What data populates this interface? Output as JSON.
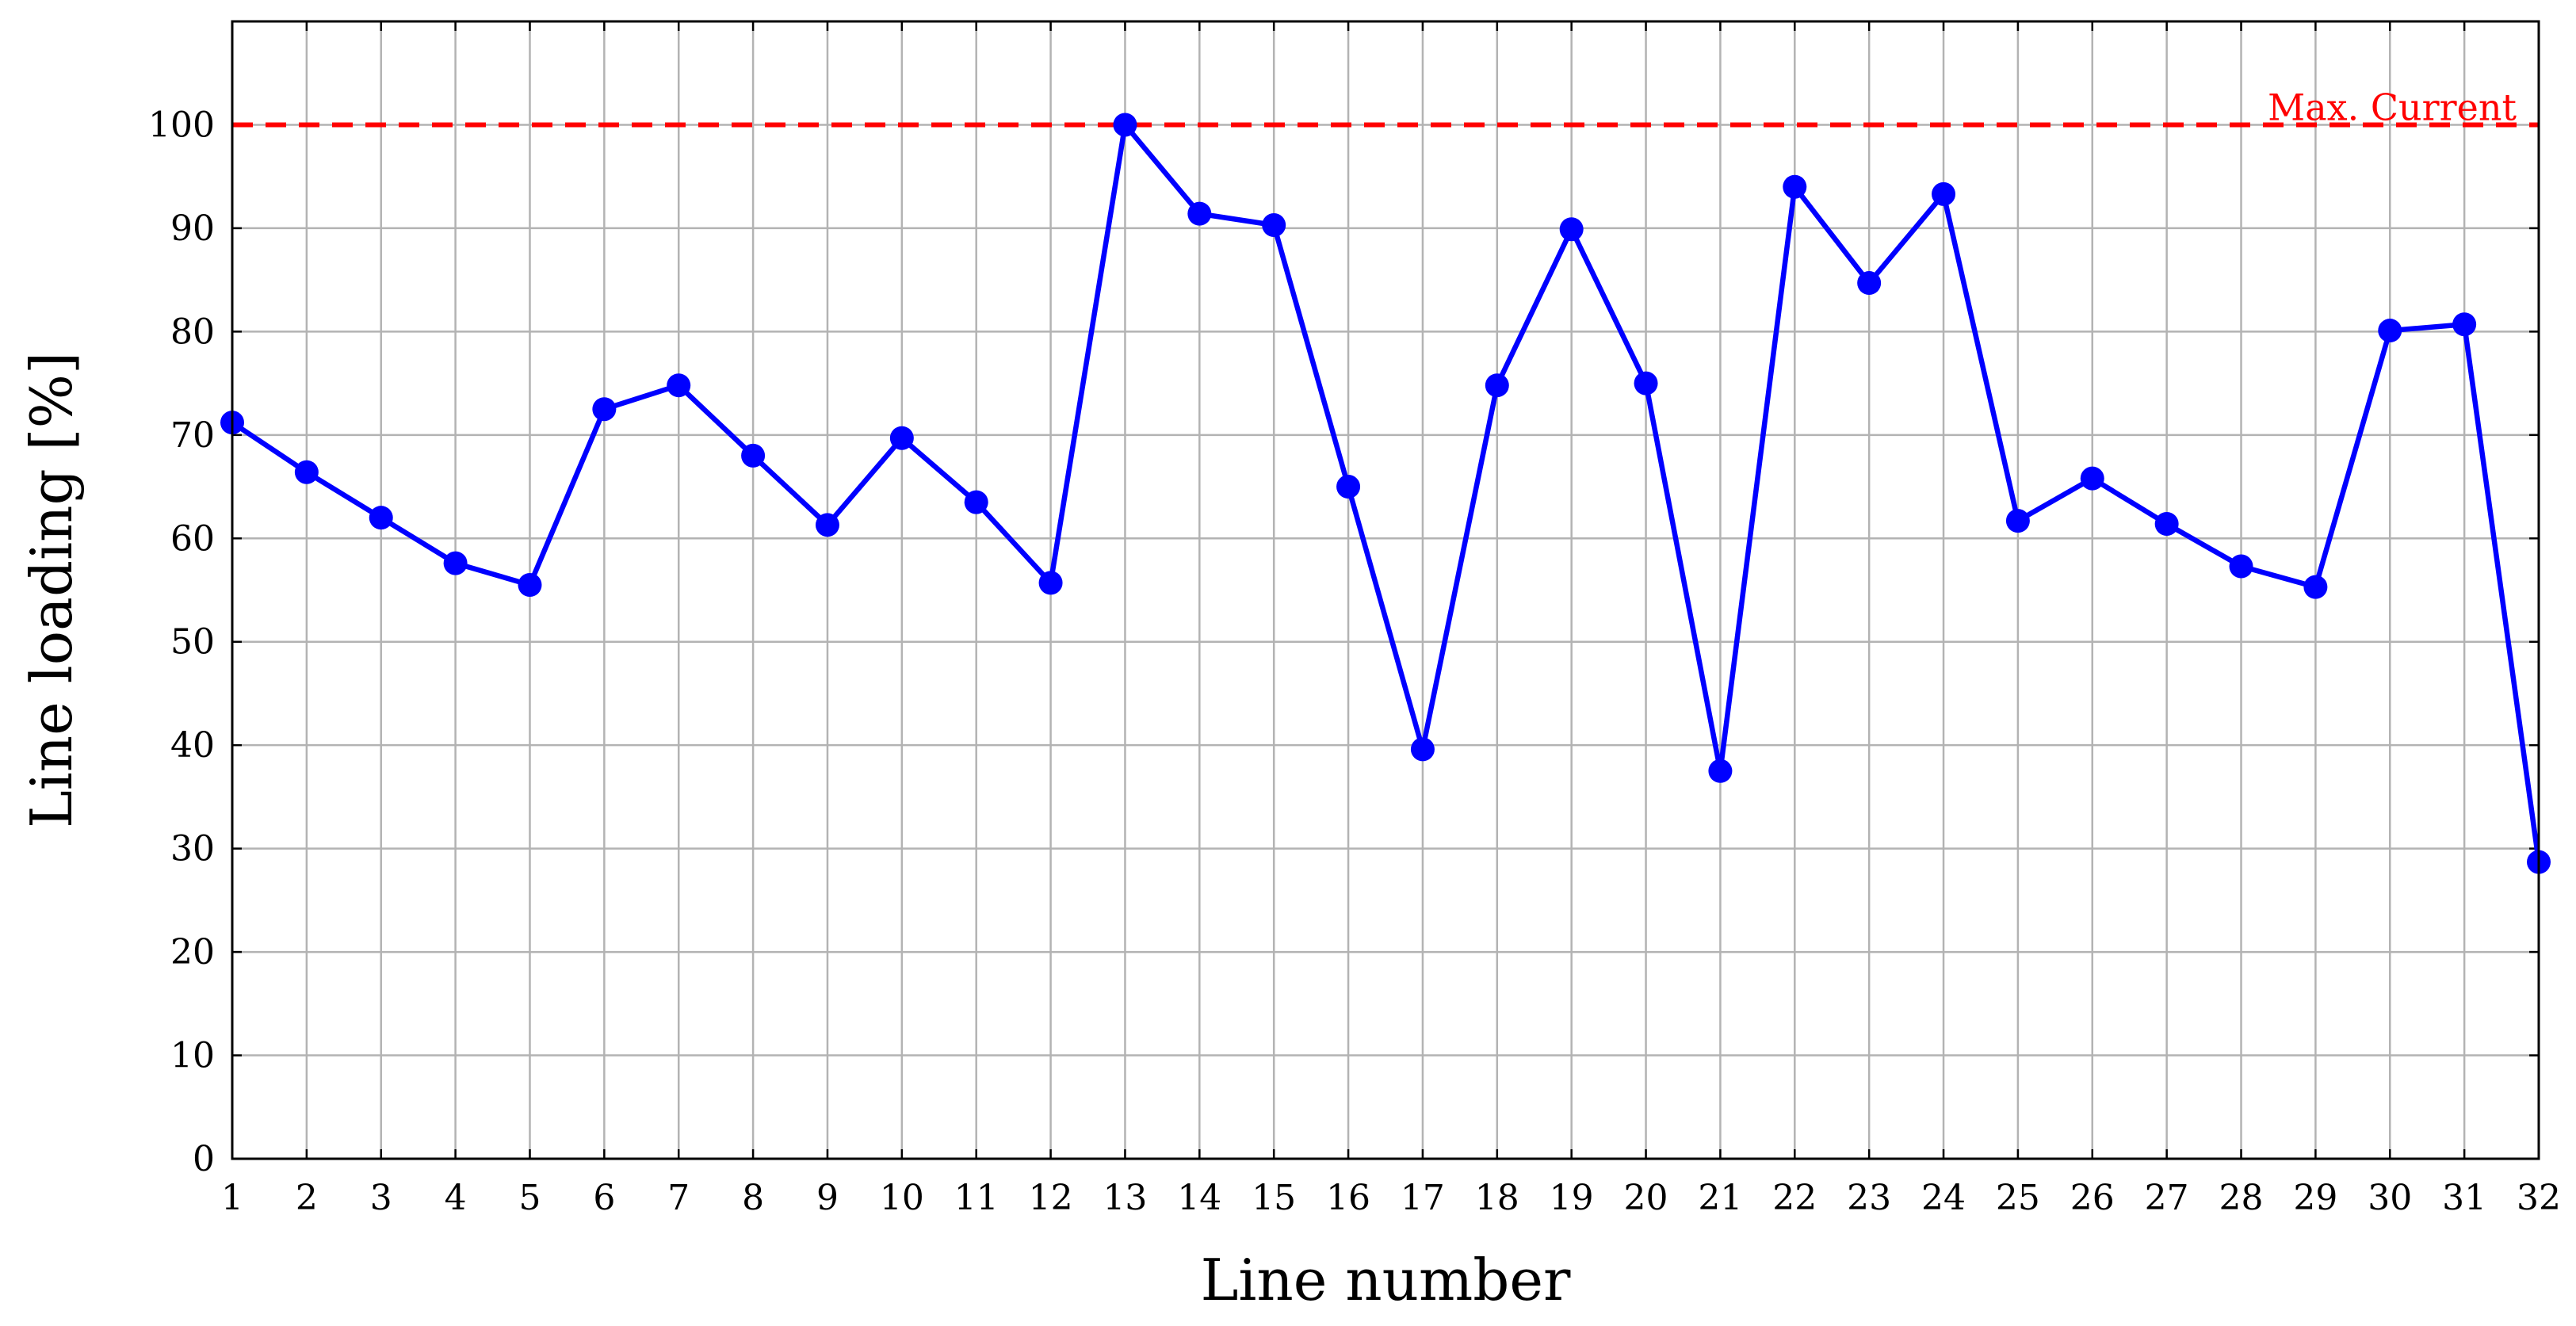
{
  "chart_data": {
    "type": "line",
    "xlabel": "Line number",
    "ylabel": "Line loading [%]",
    "xlim": [
      1,
      32
    ],
    "ylim": [
      0,
      110
    ],
    "x_ticks": [
      1,
      2,
      3,
      4,
      5,
      6,
      7,
      8,
      9,
      10,
      11,
      12,
      13,
      14,
      15,
      16,
      17,
      18,
      19,
      20,
      21,
      22,
      23,
      24,
      25,
      26,
      27,
      28,
      29,
      30,
      31,
      32
    ],
    "y_ticks": [
      0,
      10,
      20,
      30,
      40,
      50,
      60,
      70,
      80,
      90,
      100
    ],
    "grid": true,
    "series": [
      {
        "color": "#0000ff",
        "x": [
          1,
          2,
          3,
          4,
          5,
          6,
          7,
          8,
          9,
          10,
          11,
          12,
          13,
          14,
          15,
          16,
          17,
          18,
          19,
          20,
          21,
          22,
          23,
          24,
          25,
          26,
          27,
          28,
          29,
          30,
          31,
          32
        ],
        "y": [
          71.2,
          66.4,
          62.0,
          57.6,
          55.5,
          72.5,
          74.8,
          68.0,
          61.3,
          69.7,
          63.5,
          55.7,
          100.0,
          91.4,
          90.3,
          65.0,
          39.6,
          74.8,
          89.9,
          75.0,
          37.5,
          94.0,
          84.7,
          93.3,
          61.7,
          65.8,
          61.4,
          57.3,
          55.3,
          80.1,
          80.7,
          28.7
        ]
      }
    ],
    "reference_line": {
      "label": "Max. Current",
      "y": 100,
      "color": "#ff0000",
      "style": "dashed"
    }
  }
}
